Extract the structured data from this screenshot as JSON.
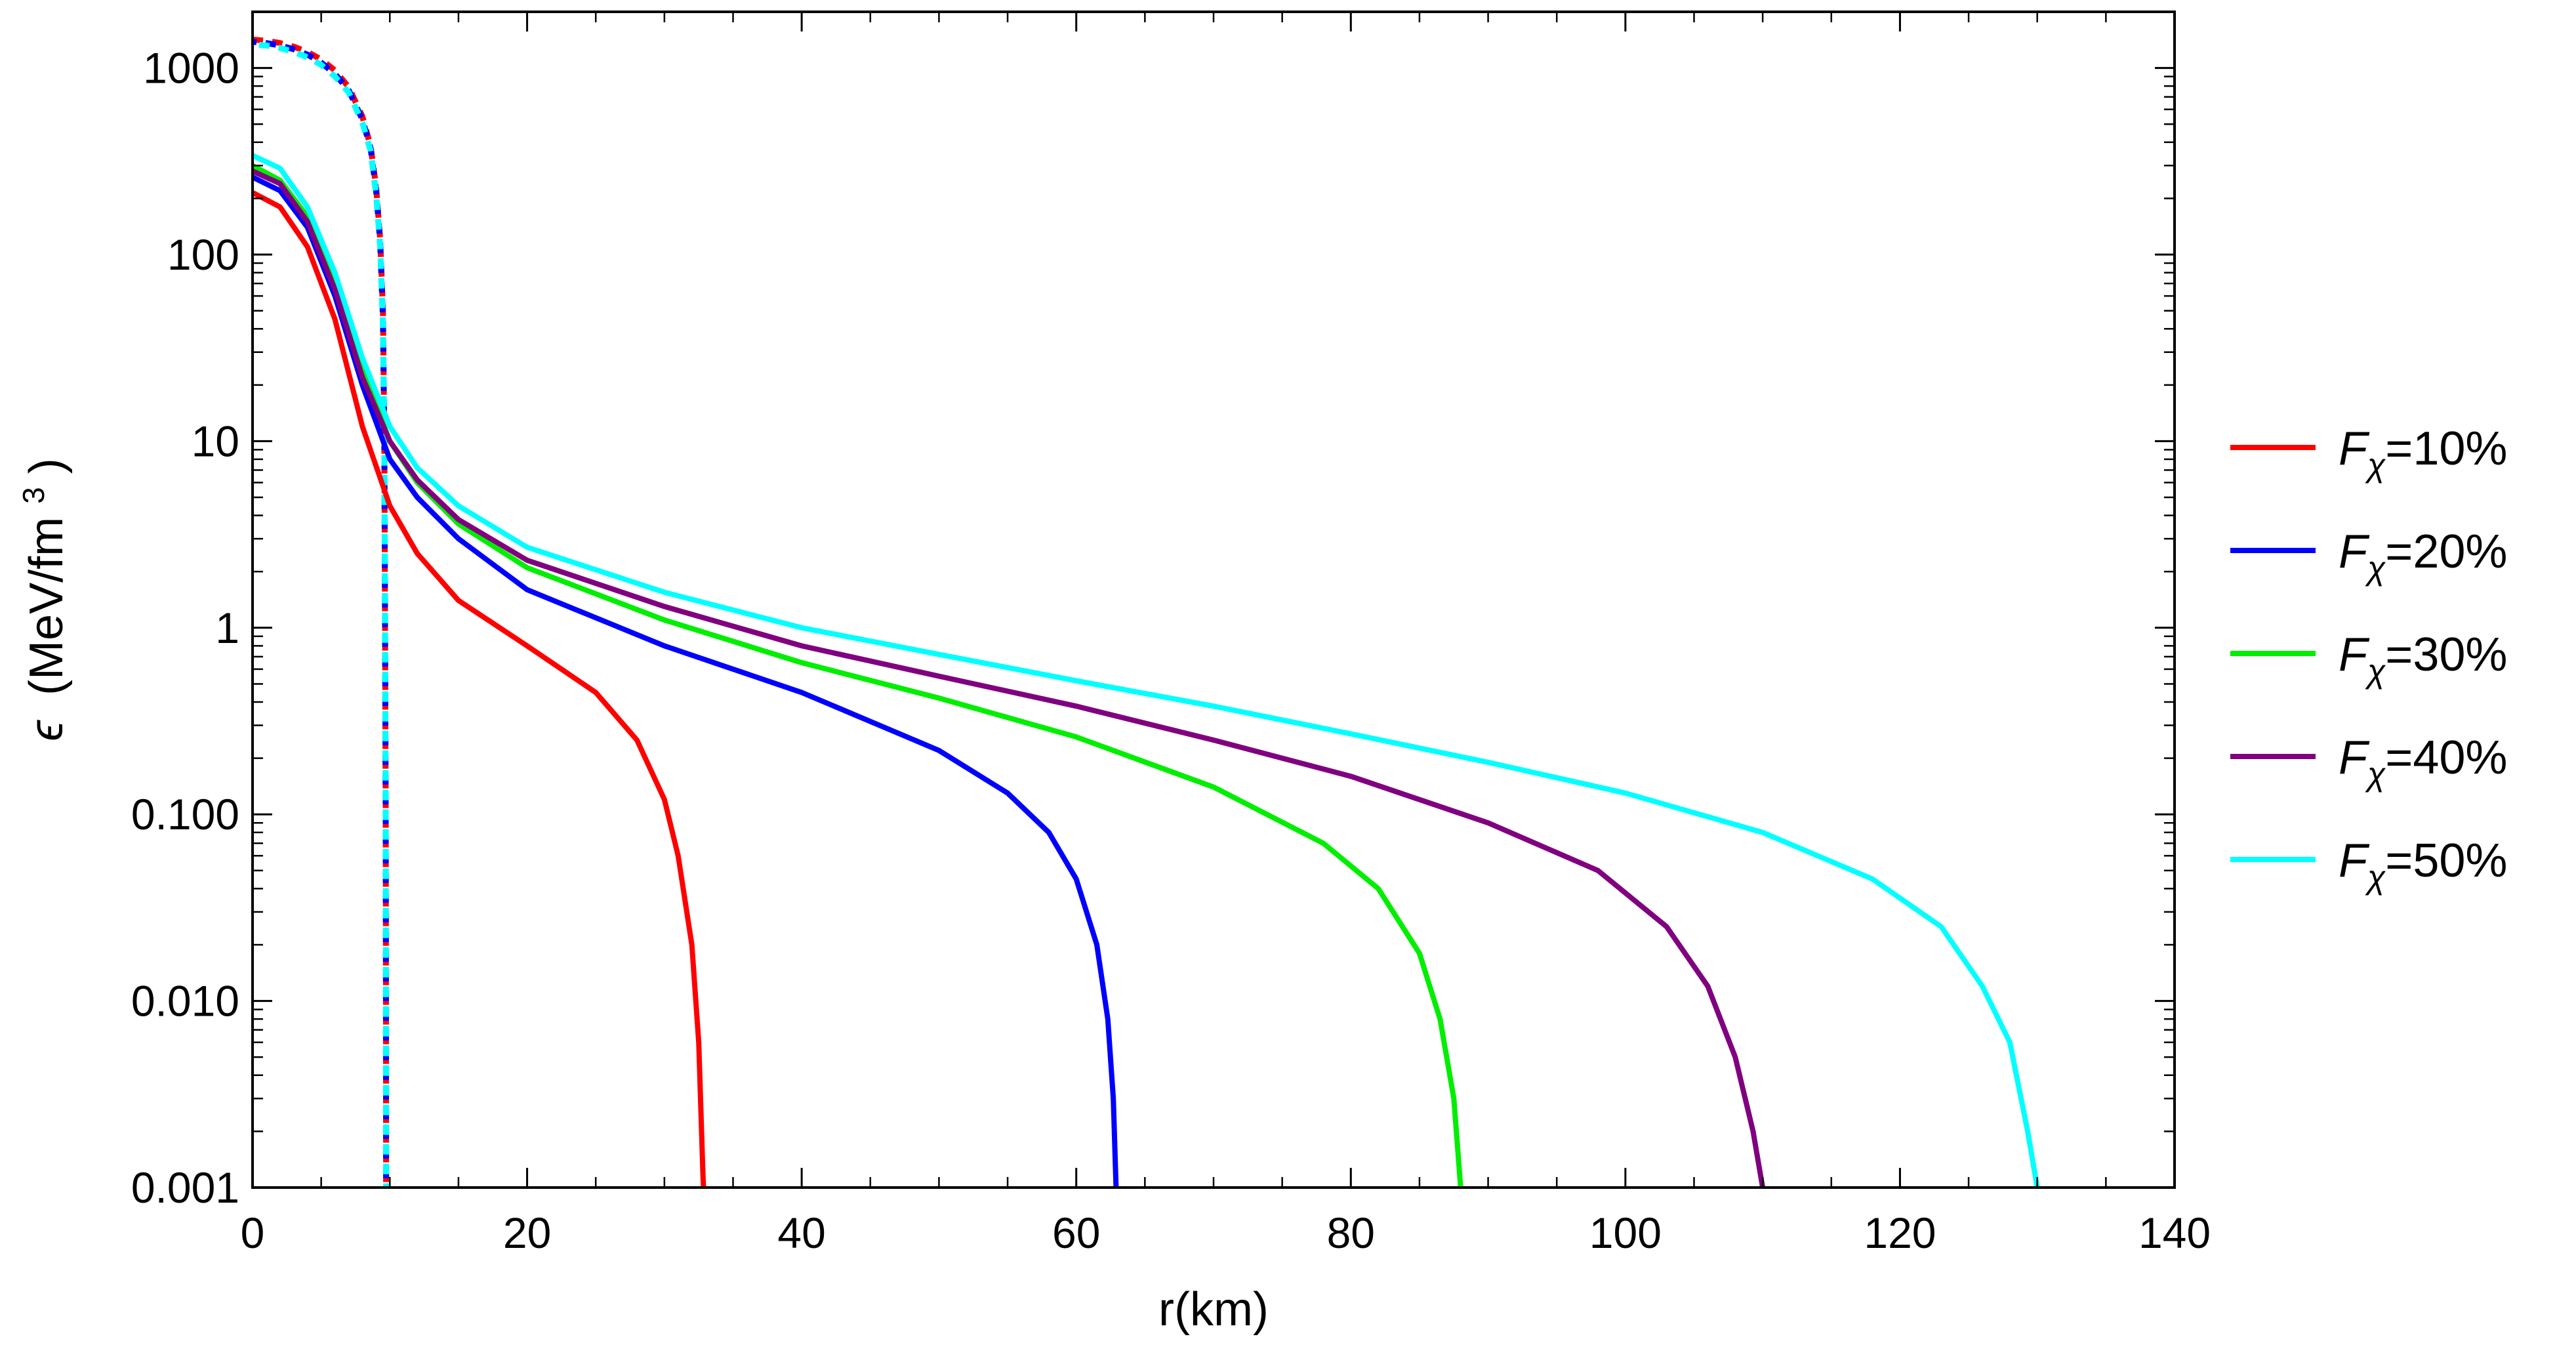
{
  "chart_data": {
    "type": "line",
    "xlabel": "r(km)",
    "ylabel": {
      "symbol": "ϵ",
      "unit_prefix": "(MeV/fm",
      "unit_exp": "3",
      "unit_suffix": ")"
    },
    "xlim": [
      0,
      140
    ],
    "ylim": [
      0.001,
      2000
    ],
    "y_scale": "log",
    "x_ticks": [
      "0",
      "20",
      "40",
      "60",
      "80",
      "100",
      "120",
      "140"
    ],
    "y_ticks": [
      "0.001",
      "0.010",
      "0.100",
      "1",
      "10",
      "100",
      "1000"
    ],
    "grid": false,
    "legend_position": "right",
    "series": [
      {
        "name": "F_χ=10%",
        "legend": {
          "base": "F",
          "sub": "χ",
          "suffix": "=10%"
        },
        "color": "#ff0000",
        "dm": [
          [
            0,
            215
          ],
          [
            2,
            180
          ],
          [
            4,
            110
          ],
          [
            6,
            45
          ],
          [
            8,
            12
          ],
          [
            10,
            4.5
          ],
          [
            12,
            2.5
          ],
          [
            15,
            1.4
          ],
          [
            20,
            0.8
          ],
          [
            25,
            0.45
          ],
          [
            28,
            0.25
          ],
          [
            30,
            0.12
          ],
          [
            31,
            0.06
          ],
          [
            32,
            0.02
          ],
          [
            32.5,
            0.006
          ],
          [
            32.8,
            0.0012
          ],
          [
            32.85,
            0.001
          ]
        ]
      },
      {
        "name": "F_χ=20%",
        "legend": {
          "base": "F",
          "sub": "χ",
          "suffix": "=20%"
        },
        "color": "#0000ff",
        "dm": [
          [
            0,
            260
          ],
          [
            2,
            220
          ],
          [
            4,
            140
          ],
          [
            6,
            60
          ],
          [
            8,
            20
          ],
          [
            10,
            8
          ],
          [
            12,
            5
          ],
          [
            15,
            3
          ],
          [
            20,
            1.6
          ],
          [
            30,
            0.8
          ],
          [
            40,
            0.45
          ],
          [
            50,
            0.22
          ],
          [
            55,
            0.13
          ],
          [
            58,
            0.08
          ],
          [
            60,
            0.045
          ],
          [
            61.5,
            0.02
          ],
          [
            62.3,
            0.008
          ],
          [
            62.7,
            0.003
          ],
          [
            62.9,
            0.001
          ]
        ]
      },
      {
        "name": "F_χ=30%",
        "legend": {
          "base": "F",
          "sub": "χ",
          "suffix": "=30%"
        },
        "color": "#00ee00",
        "dm": [
          [
            0,
            300
          ],
          [
            2,
            250
          ],
          [
            4,
            160
          ],
          [
            6,
            70
          ],
          [
            8,
            24
          ],
          [
            10,
            10
          ],
          [
            12,
            6
          ],
          [
            15,
            3.6
          ],
          [
            20,
            2.1
          ],
          [
            30,
            1.1
          ],
          [
            40,
            0.65
          ],
          [
            50,
            0.42
          ],
          [
            60,
            0.26
          ],
          [
            70,
            0.14
          ],
          [
            78,
            0.07
          ],
          [
            82,
            0.04
          ],
          [
            85,
            0.018
          ],
          [
            86.5,
            0.008
          ],
          [
            87.5,
            0.003
          ],
          [
            88,
            0.001
          ]
        ]
      },
      {
        "name": "F_χ=40%",
        "legend": {
          "base": "F",
          "sub": "χ",
          "suffix": "=40%"
        },
        "color": "#800080",
        "dm": [
          [
            0,
            280
          ],
          [
            2,
            240
          ],
          [
            4,
            150
          ],
          [
            6,
            65
          ],
          [
            8,
            22
          ],
          [
            10,
            10
          ],
          [
            12,
            6.2
          ],
          [
            15,
            3.8
          ],
          [
            20,
            2.3
          ],
          [
            30,
            1.3
          ],
          [
            40,
            0.8
          ],
          [
            50,
            0.55
          ],
          [
            60,
            0.38
          ],
          [
            70,
            0.25
          ],
          [
            80,
            0.16
          ],
          [
            90,
            0.09
          ],
          [
            98,
            0.05
          ],
          [
            103,
            0.025
          ],
          [
            106,
            0.012
          ],
          [
            108,
            0.005
          ],
          [
            109.3,
            0.002
          ],
          [
            110,
            0.001
          ]
        ]
      },
      {
        "name": "F_χ=50%",
        "legend": {
          "base": "F",
          "sub": "χ",
          "suffix": "=50%"
        },
        "color": "#00ffff",
        "dm": [
          [
            0,
            340
          ],
          [
            2,
            290
          ],
          [
            4,
            180
          ],
          [
            6,
            80
          ],
          [
            8,
            28
          ],
          [
            10,
            12
          ],
          [
            12,
            7.2
          ],
          [
            15,
            4.5
          ],
          [
            20,
            2.7
          ],
          [
            30,
            1.55
          ],
          [
            40,
            1
          ],
          [
            50,
            0.72
          ],
          [
            60,
            0.52
          ],
          [
            70,
            0.38
          ],
          [
            80,
            0.27
          ],
          [
            90,
            0.19
          ],
          [
            100,
            0.13
          ],
          [
            110,
            0.08
          ],
          [
            118,
            0.045
          ],
          [
            123,
            0.025
          ],
          [
            126,
            0.012
          ],
          [
            128,
            0.006
          ],
          [
            129.3,
            0.002
          ],
          [
            130,
            0.001
          ]
        ]
      }
    ],
    "dashed_series": [
      {
        "color": "#ff0000",
        "nm": [
          [
            0,
            1420
          ],
          [
            1,
            1400
          ],
          [
            2,
            1360
          ],
          [
            3,
            1300
          ],
          [
            4,
            1220
          ],
          [
            5,
            1110
          ],
          [
            6,
            970
          ],
          [
            7,
            790
          ],
          [
            8,
            550
          ],
          [
            8.6,
            380
          ],
          [
            9.0,
            230
          ],
          [
            9.3,
            120
          ],
          [
            9.5,
            50
          ],
          [
            9.6,
            10
          ],
          [
            9.65,
            1
          ],
          [
            9.7,
            0.1
          ],
          [
            9.72,
            0.01
          ],
          [
            9.73,
            0.001
          ]
        ]
      },
      {
        "color": "#0000ff",
        "nm": [
          [
            0,
            1380
          ],
          [
            1,
            1360
          ],
          [
            2,
            1320
          ],
          [
            3,
            1260
          ],
          [
            4,
            1180
          ],
          [
            5,
            1070
          ],
          [
            6,
            930
          ],
          [
            7,
            760
          ],
          [
            8,
            530
          ],
          [
            8.6,
            370
          ],
          [
            9.0,
            220
          ],
          [
            9.3,
            115
          ],
          [
            9.5,
            45
          ],
          [
            9.6,
            10
          ],
          [
            9.65,
            1
          ],
          [
            9.7,
            0.1
          ],
          [
            9.72,
            0.01
          ],
          [
            9.73,
            0.001
          ]
        ]
      },
      {
        "color": "#00ffff",
        "nm": [
          [
            0,
            1340
          ],
          [
            1,
            1320
          ],
          [
            2,
            1280
          ],
          [
            3,
            1220
          ],
          [
            4,
            1140
          ],
          [
            5,
            1040
          ],
          [
            6,
            900
          ],
          [
            7,
            740
          ],
          [
            8,
            510
          ],
          [
            8.6,
            360
          ],
          [
            9.0,
            210
          ],
          [
            9.3,
            110
          ],
          [
            9.5,
            42
          ],
          [
            9.6,
            10
          ],
          [
            9.65,
            1
          ],
          [
            9.7,
            0.1
          ],
          [
            9.72,
            0.01
          ],
          [
            9.73,
            0.001
          ]
        ]
      }
    ]
  }
}
